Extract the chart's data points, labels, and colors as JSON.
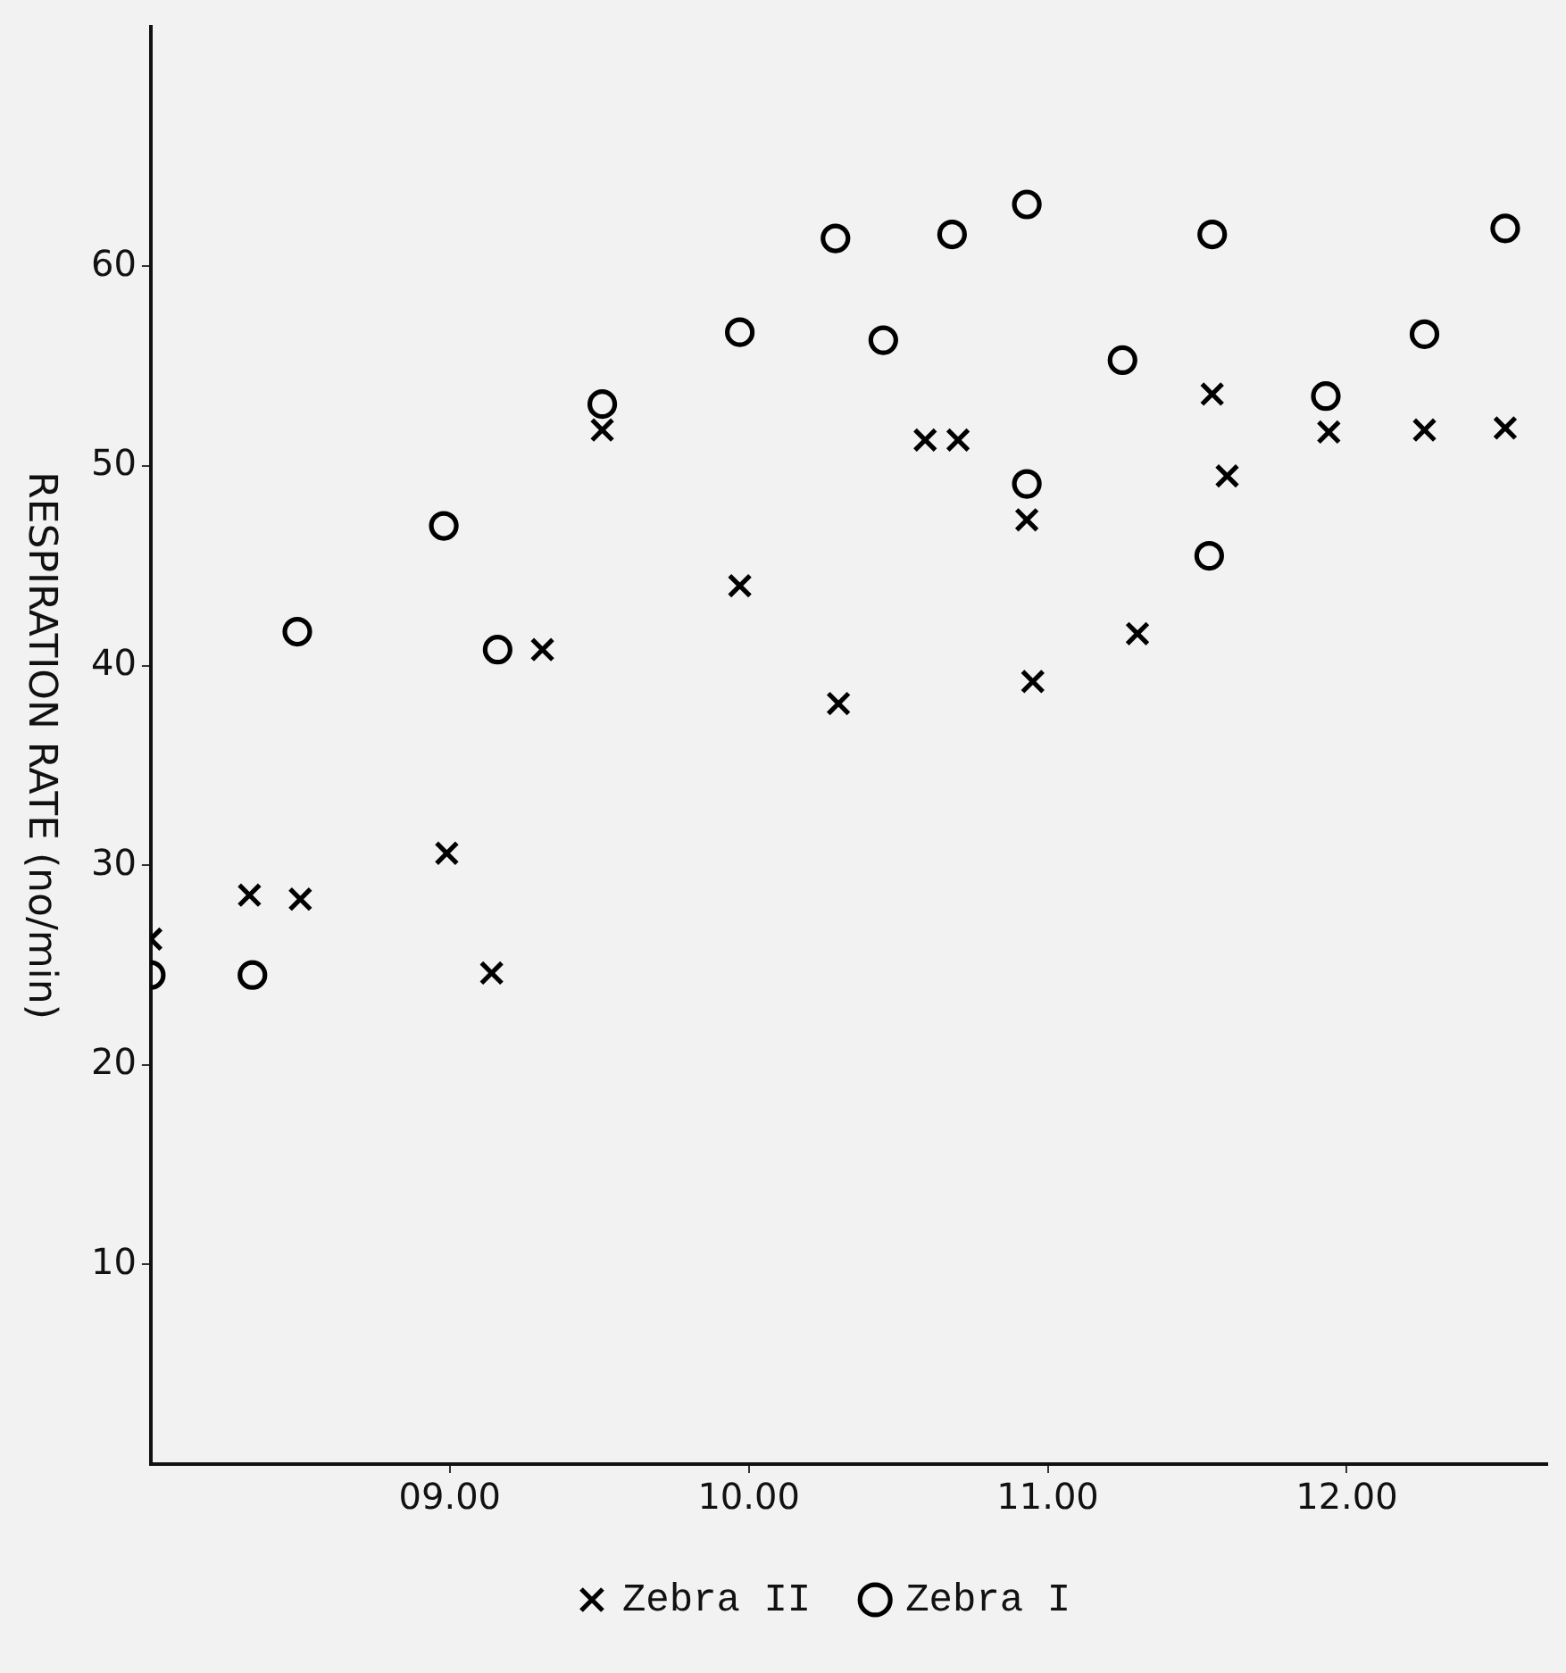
{
  "chart_data": {
    "type": "scatter",
    "ylabel": "RESPIRATION RATE (no/min)",
    "xlim": [
      8,
      12.67
    ],
    "xticks": [
      {
        "value": 9,
        "label": "09.00"
      },
      {
        "value": 10,
        "label": "10.00"
      },
      {
        "value": 11,
        "label": "11.00"
      },
      {
        "value": 12,
        "label": "12.00"
      }
    ],
    "ylim": [
      0,
      72
    ],
    "yticks": [
      10,
      20,
      30,
      40,
      50,
      60
    ],
    "grid": false,
    "legend": "bottom",
    "series": [
      {
        "name": "Zebra II",
        "color": "#000000",
        "marker": "cross",
        "x": [
          8.0,
          8.33,
          8.5,
          8.99,
          9.14,
          9.31,
          9.51,
          9.97,
          10.3,
          10.59,
          10.7,
          10.93,
          10.95,
          11.3,
          11.55,
          11.6,
          11.94,
          12.26,
          12.53
        ],
        "values": [
          26.3,
          28.5,
          28.3,
          30.6,
          24.6,
          40.8,
          51.8,
          44.0,
          38.1,
          51.3,
          51.3,
          47.3,
          39.2,
          41.6,
          53.6,
          49.5,
          51.7,
          51.8,
          51.9
        ]
      },
      {
        "name": "Zebra I",
        "color": "#000000",
        "marker": "circle",
        "x": [
          8.0,
          8.34,
          8.49,
          8.98,
          9.16,
          9.51,
          9.97,
          10.29,
          10.45,
          10.68,
          10.93,
          10.93,
          11.25,
          11.55,
          11.54,
          11.93,
          12.26,
          12.53
        ],
        "values": [
          24.5,
          24.5,
          41.7,
          47.0,
          40.8,
          53.1,
          56.7,
          61.4,
          56.3,
          61.6,
          63.1,
          49.1,
          55.3,
          61.6,
          45.5,
          53.5,
          56.6,
          61.9
        ]
      }
    ]
  }
}
